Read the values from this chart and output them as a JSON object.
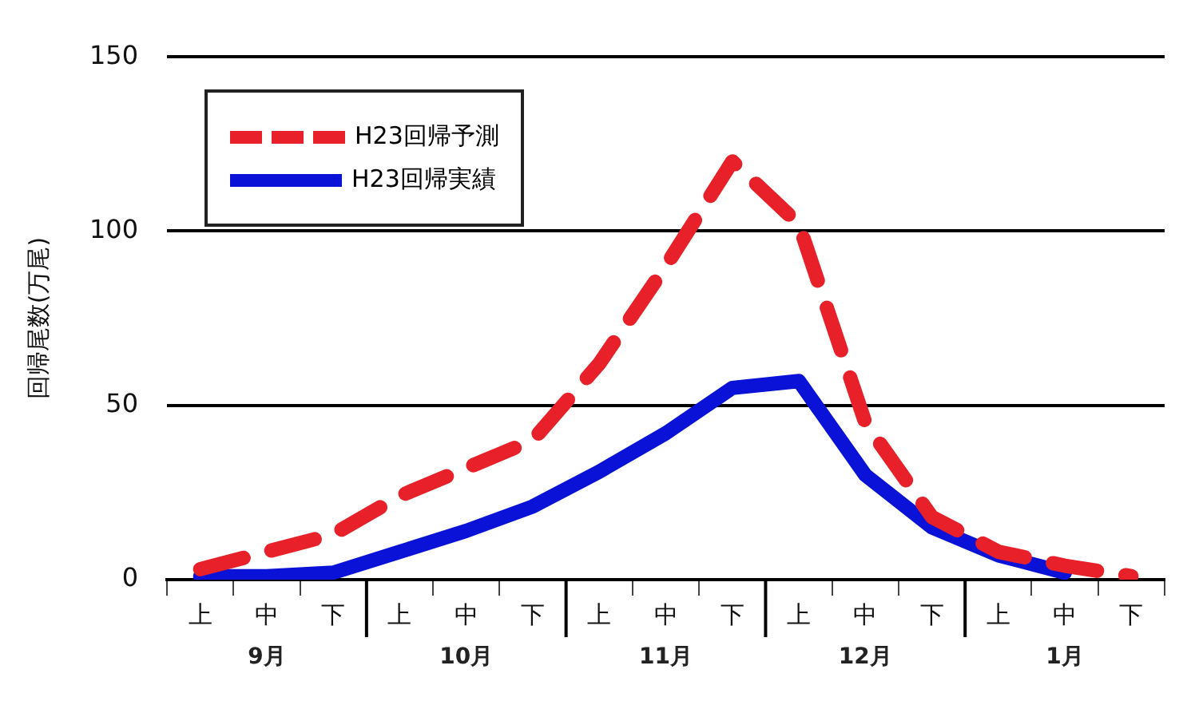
{
  "chart_data": {
    "type": "line",
    "ylabel": "回帰尾数(万尾)",
    "categories": [
      "上",
      "中",
      "下",
      "上",
      "中",
      "下",
      "上",
      "中",
      "下",
      "上",
      "中",
      "下",
      "上",
      "中",
      "下"
    ],
    "annotations": [
      "9月",
      "10月",
      "11月",
      "12月",
      "1月"
    ],
    "series": [
      {
        "name": "H23回帰予測",
        "color": "#e8202a",
        "line_style": "dashed",
        "values": [
          3,
          8,
          13,
          24,
          32,
          40,
          62,
          90,
          120,
          102,
          45,
          18,
          8,
          4,
          1
        ]
      },
      {
        "name": "H23回帰実績",
        "color": "#0a12d8",
        "line_style": "solid",
        "values": [
          1,
          1,
          2,
          8,
          14,
          21,
          31,
          42,
          55,
          57,
          30,
          15,
          7,
          2,
          null
        ]
      }
    ],
    "ylim": [
      0,
      150
    ],
    "yticks": [
      0,
      50,
      100,
      150
    ],
    "grid": "y",
    "legend": "top left",
    "marker": "none"
  }
}
